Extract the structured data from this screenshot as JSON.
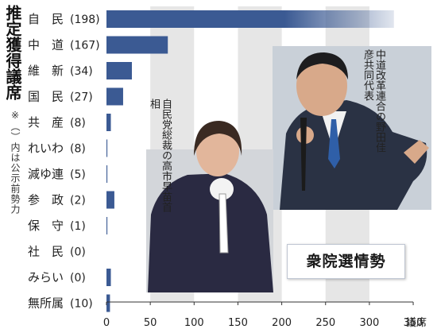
{
  "chart_data": {
    "type": "bar",
    "orientation": "horizontal",
    "title": "推定獲得議席",
    "note": "※（）内は公示前勢力",
    "categories": [
      "自　民",
      "中　道",
      "維　新",
      "国　民",
      "共　産",
      "れいわ",
      "減ゆ連",
      "参　政",
      "保　守",
      "社　民",
      "みらい",
      "無所属"
    ],
    "pre_election_seats": [
      "(198)",
      "(167)",
      "(34)",
      "(27)",
      "(8)",
      "(8)",
      "(5)",
      "(2)",
      "(1)",
      "(0)",
      "(0)",
      "(10)"
    ],
    "values": [
      328,
      70,
      29,
      19,
      5,
      1,
      1,
      9,
      1,
      0,
      5,
      4
    ],
    "x_ticks": [
      "0",
      "50",
      "100",
      "150",
      "200",
      "250",
      "300",
      "350"
    ],
    "x_unit": "議席",
    "xlim": [
      0,
      350
    ],
    "bar_color": "#3b5a93",
    "grid_color": "#e6e6e6"
  },
  "captions": {
    "takaichi": "自民党総裁の高市早苗首相",
    "noda": "中道改革連合の野田佳彦共同代表"
  },
  "label": "衆院選情勢",
  "colors": {
    "bar": "#3b5a93",
    "band": "#e6e6e6"
  }
}
